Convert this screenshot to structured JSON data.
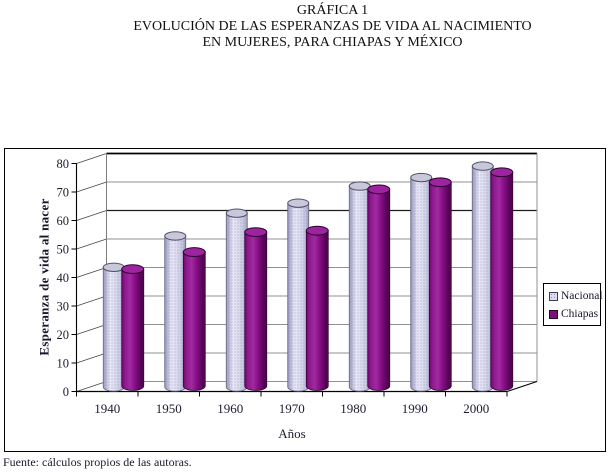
{
  "title": {
    "line1": "GRÁFICA 1",
    "line2": "EVOLUCIÓN DE LAS ESPERANZAS DE VIDA AL NACIMIENTO",
    "line3": "EN MUJERES, PARA CHIAPAS Y MÉXICO"
  },
  "source_note": "Fuente: cálculos propios de las autoras.",
  "chart_data": {
    "type": "bar",
    "style": "3d-cylinder",
    "title": "GRÁFICA 1 — EVOLUCIÓN DE LAS ESPERANZAS DE VIDA AL NACIMIENTO EN MUJERES, PARA CHIAPAS Y MÉXICO",
    "categories": [
      "1940",
      "1950",
      "1960",
      "1970",
      "1980",
      "1990",
      "2000"
    ],
    "series": [
      {
        "name": "Nacional",
        "color": "#dcdcf0",
        "values": [
          42,
          53,
          61,
          64.5,
          70.5,
          73.5,
          77.5
        ]
      },
      {
        "name": "Chiapas",
        "color": "#7d0c7d",
        "values": [
          41,
          47,
          54,
          54.5,
          69,
          71.5,
          75
        ]
      }
    ],
    "xlabel": "Años",
    "ylabel": "Esperanza de vida al nacer",
    "ylim": [
      0,
      80
    ],
    "yticks": [
      0,
      10,
      20,
      30,
      40,
      50,
      60,
      70,
      80
    ],
    "grid": true,
    "legend_position": "right"
  }
}
